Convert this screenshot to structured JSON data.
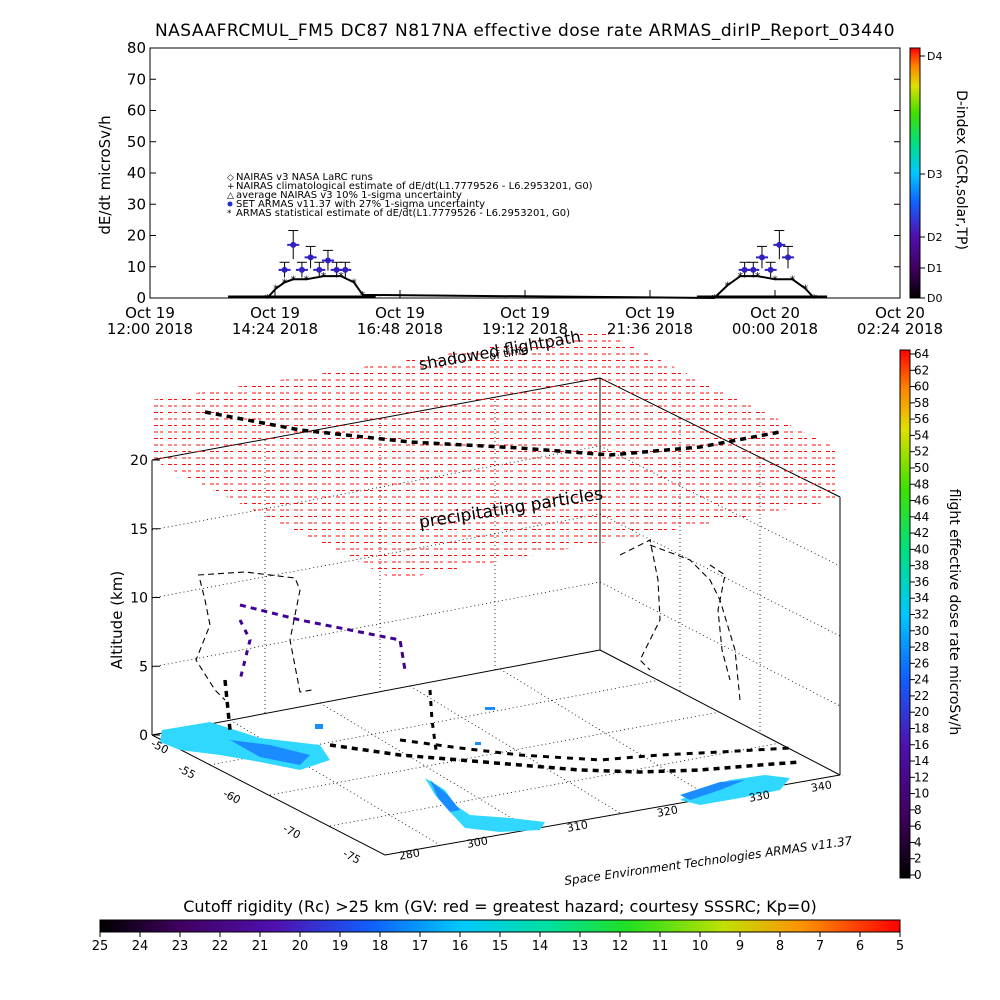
{
  "title": "NASAAFRCMUL_FM5 DC87 N817NA effective dose rate ARMAS_dirIP_Report_03440",
  "top_panel": {
    "ylabel": "dE/dt microSv/h",
    "yticks": [
      "0",
      "10",
      "20",
      "30",
      "40",
      "50",
      "60",
      "70",
      "80"
    ],
    "xticks": [
      {
        "l1": "Oct 19",
        "l2": "12:00 2018"
      },
      {
        "l1": "Oct 19",
        "l2": "14:24 2018"
      },
      {
        "l1": "Oct 19",
        "l2": "16:48 2018"
      },
      {
        "l1": "Oct 19",
        "l2": "19:12 2018"
      },
      {
        "l1": "Oct 19",
        "l2": "21:36 2018"
      },
      {
        "l1": "Oct 20",
        "l2": "00:00 2018"
      },
      {
        "l1": "Oct 20",
        "l2": "02:24 2018"
      }
    ],
    "legend": [
      "NAIRAS v3 NASA LaRC runs",
      "NAIRAS climatological estimate of dE/dt(L1.7779526 - L6.2953201, G0)",
      "average NAIRAS v3 10% 1-sigma uncertainty",
      "SET ARMAS v11.37 with 27% 1-sigma uncertainty",
      "ARMAS statistical estimate of dE/dt(L1.7779526 - L6.2953201, G0)"
    ],
    "dindex_label": "D-index (GCR,solar,TP)",
    "dindex_ticks": [
      "D0",
      "D1",
      "D2",
      "D3",
      "D4"
    ]
  },
  "chart_data": [
    {
      "type": "scatter",
      "title": "NASAAFRCMUL_FM5 DC87 N817NA effective dose rate ARMAS_dirIP_Report_03440",
      "xlabel": "",
      "ylabel": "dE/dt microSv/h",
      "xlim": [
        "2018-10-19 12:00",
        "2018-10-20 02:24"
      ],
      "ylim": [
        0,
        80
      ],
      "series": [
        {
          "name": "SET ARMAS v11.37 with 27% 1-sigma uncertainty",
          "x": [
            "2018-10-19 14:35",
            "2018-10-19 14:45",
            "2018-10-19 14:55",
            "2018-10-19 15:05",
            "2018-10-19 15:15",
            "2018-10-19 15:25",
            "2018-10-19 15:35",
            "2018-10-19 15:45",
            "2018-10-19 23:25",
            "2018-10-19 23:35",
            "2018-10-19 23:45",
            "2018-10-19 23:55",
            "2018-10-20 00:05",
            "2018-10-20 00:15"
          ],
          "y": [
            9,
            17,
            9,
            13,
            9,
            12,
            9,
            9,
            9,
            9,
            13,
            9,
            17,
            13
          ]
        },
        {
          "name": "ARMAS statistical estimate of dE/dt(L1.7779526 - L6.2953201, G0)",
          "x": [
            "2018-10-19 14:15",
            "2018-10-19 14:25",
            "2018-10-19 14:35",
            "2018-10-19 14:45",
            "2018-10-19 15:00",
            "2018-10-19 15:20",
            "2018-10-19 15:40",
            "2018-10-19 15:55",
            "2018-10-19 16:05",
            "2018-10-19 22:50",
            "2018-10-19 23:05",
            "2018-10-19 23:20",
            "2018-10-19 23:40",
            "2018-10-20 00:00",
            "2018-10-20 00:20",
            "2018-10-20 00:35",
            "2018-10-20 00:45"
          ],
          "y": [
            0,
            3,
            5,
            6,
            6,
            7,
            7,
            5,
            1,
            0,
            4,
            7,
            7,
            6,
            6,
            3,
            0
          ]
        }
      ]
    },
    {
      "type": "3d-trajectory",
      "title": "",
      "xlabel": "",
      "ylabel": "",
      "zlabel": "Altitude (km)",
      "zlim": [
        0,
        20
      ],
      "longitude_ticks": [
        "280",
        "300",
        "310",
        "320",
        "330",
        "340"
      ],
      "latitude_ticks": [
        "-50",
        "-55",
        "-60",
        "-70",
        "-75"
      ],
      "altitude_ticks": [
        "0",
        "5",
        "10",
        "15",
        "20"
      ]
    }
  ],
  "bottom_panel": {
    "zlabel": "Altitude (km)",
    "zticks": [
      "0",
      "5",
      "10",
      "15",
      "20"
    ],
    "lon_ticks": [
      "280",
      "300",
      "310",
      "320",
      "330",
      "340"
    ],
    "lat_ticks": [
      "-50",
      "-55",
      "-60",
      "-70",
      "-75"
    ],
    "annot_shadow": "shadowed flightpath",
    "annot_time": "of time",
    "annot_precip": "precipitating particles",
    "credit": "Space Environment Technologies ARMAS v11.37",
    "right_label": "flight effective dose rate microSv/h",
    "right_ticks": [
      "0",
      "2",
      "4",
      "6",
      "8",
      "10",
      "12",
      "14",
      "16",
      "18",
      "20",
      "22",
      "24",
      "26",
      "28",
      "30",
      "32",
      "34",
      "36",
      "38",
      "40",
      "42",
      "44",
      "46",
      "48",
      "50",
      "52",
      "54",
      "56",
      "58",
      "60",
      "62",
      "64"
    ]
  },
  "cutoff": {
    "label": "Cutoff rigidity (Rc) >25 km (GV: red = greatest hazard; courtesy SSSRC; Kp=0)",
    "ticks": [
      "25",
      "24",
      "23",
      "22",
      "21",
      "20",
      "19",
      "18",
      "17",
      "16",
      "15",
      "14",
      "13",
      "12",
      "11",
      "10",
      "9",
      "8",
      "7",
      "6",
      "5"
    ]
  },
  "colors": {
    "hazard_red": "#ff0000",
    "armas_blue": "#3020c0",
    "region_cyan": "#30d8ff",
    "region_blue": "#1a8cff"
  }
}
